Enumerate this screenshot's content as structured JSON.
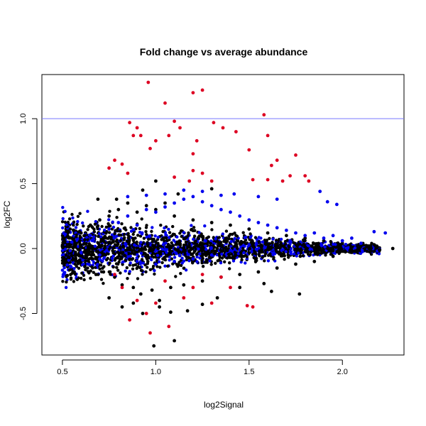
{
  "chart_data": {
    "type": "scatter",
    "title": "Fold change vs average abundance",
    "xlabel": "log2Signal",
    "ylabel": "log2FC",
    "xlim": [
      0.39,
      2.33
    ],
    "ylim": [
      -0.82,
      1.34
    ],
    "x_ticks": [
      "0.5",
      "1.0",
      "1.5",
      "2.0"
    ],
    "y_ticks": [
      "-0.5",
      "0.0",
      "0.5",
      "1.0"
    ],
    "x_tick_values": [
      0.5,
      1.0,
      1.5,
      2.0
    ],
    "y_tick_values": [
      -0.5,
      0.0,
      0.5,
      1.0
    ],
    "reference_line": {
      "y": 1.0,
      "color": "#7777ff"
    },
    "grid": false,
    "legend": "none",
    "colors": {
      "black": "#000000",
      "blue": "#0000ee",
      "red": "#dd0022"
    },
    "series": [
      {
        "color": "black",
        "points": [
          [
            0.5,
            0.02
          ],
          [
            0.52,
            -0.05
          ],
          [
            0.55,
            0.08
          ],
          [
            0.58,
            -0.1
          ],
          [
            0.6,
            0.12
          ],
          [
            0.62,
            -0.14
          ],
          [
            0.65,
            0.18
          ],
          [
            0.68,
            -0.2
          ],
          [
            0.7,
            0.22
          ],
          [
            0.72,
            -0.18
          ],
          [
            0.75,
            0.25
          ],
          [
            0.78,
            -0.22
          ],
          [
            0.8,
            0.3
          ],
          [
            0.82,
            -0.28
          ],
          [
            0.85,
            0.35
          ],
          [
            0.88,
            -0.3
          ],
          [
            0.9,
            0.28
          ],
          [
            0.92,
            -0.35
          ],
          [
            0.95,
            0.33
          ],
          [
            0.98,
            -0.32
          ],
          [
            1.0,
            0.3
          ],
          [
            1.02,
            -0.4
          ],
          [
            1.05,
            0.35
          ],
          [
            1.08,
            -0.3
          ],
          [
            1.1,
            0.25
          ],
          [
            1.15,
            -0.28
          ],
          [
            1.2,
            0.22
          ],
          [
            1.25,
            -0.25
          ],
          [
            1.3,
            0.2
          ],
          [
            1.35,
            -0.22
          ],
          [
            1.4,
            0.18
          ],
          [
            1.45,
            -0.2
          ],
          [
            1.5,
            0.15
          ],
          [
            1.55,
            -0.18
          ],
          [
            1.6,
            0.12
          ],
          [
            1.65,
            -0.15
          ],
          [
            1.7,
            0.1
          ],
          [
            1.75,
            -0.12
          ],
          [
            1.8,
            0.08
          ],
          [
            1.85,
            -0.1
          ],
          [
            1.9,
            0.06
          ],
          [
            1.95,
            -0.06
          ],
          [
            2.0,
            0.04
          ],
          [
            2.05,
            -0.03
          ],
          [
            2.1,
            0.02
          ],
          [
            2.15,
            0.01
          ],
          [
            2.2,
            -0.01
          ],
          [
            2.27,
            0.0
          ],
          [
            0.82,
            -0.45
          ],
          [
            0.88,
            -0.42
          ],
          [
            0.93,
            -0.5
          ],
          [
            1.02,
            -0.45
          ],
          [
            1.08,
            -0.49
          ],
          [
            1.17,
            -0.48
          ],
          [
            1.1,
            -0.71
          ],
          [
            0.99,
            -0.75
          ],
          [
            1.25,
            -0.43
          ],
          [
            1.33,
            -0.38
          ],
          [
            1.45,
            -0.3
          ],
          [
            1.58,
            -0.27
          ],
          [
            1.62,
            -0.33
          ],
          [
            1.77,
            -0.35
          ],
          [
            0.75,
            -0.38
          ],
          [
            0.79,
            0.38
          ],
          [
            0.93,
            0.45
          ],
          [
            1.0,
            0.52
          ],
          [
            1.12,
            0.42
          ],
          [
            1.3,
            0.46
          ],
          [
            0.69,
            0.38
          ]
        ]
      },
      {
        "color": "blue",
        "points": [
          [
            0.55,
            0.05
          ],
          [
            0.6,
            -0.03
          ],
          [
            0.65,
            0.1
          ],
          [
            0.7,
            -0.08
          ],
          [
            0.75,
            0.15
          ],
          [
            0.8,
            0.2
          ],
          [
            0.85,
            0.25
          ],
          [
            0.9,
            0.18
          ],
          [
            0.95,
            0.3
          ],
          [
            1.0,
            0.28
          ],
          [
            1.05,
            0.32
          ],
          [
            1.1,
            0.35
          ],
          [
            1.15,
            0.38
          ],
          [
            1.2,
            0.4
          ],
          [
            1.25,
            0.36
          ],
          [
            1.3,
            0.33
          ],
          [
            1.35,
            0.3
          ],
          [
            1.4,
            0.28
          ],
          [
            1.45,
            0.25
          ],
          [
            1.5,
            0.22
          ],
          [
            1.55,
            0.2
          ],
          [
            1.6,
            0.18
          ],
          [
            1.65,
            0.16
          ],
          [
            1.7,
            0.14
          ],
          [
            1.75,
            0.12
          ],
          [
            1.8,
            0.1
          ],
          [
            1.85,
            0.12
          ],
          [
            1.9,
            0.08
          ],
          [
            1.95,
            0.1
          ],
          [
            2.0,
            0.06
          ],
          [
            2.05,
            0.08
          ],
          [
            2.1,
            0.04
          ],
          [
            2.17,
            0.13
          ],
          [
            2.23,
            0.12
          ],
          [
            1.88,
            0.44
          ],
          [
            1.92,
            0.36
          ],
          [
            1.97,
            0.34
          ],
          [
            1.65,
            0.38
          ],
          [
            1.55,
            0.4
          ],
          [
            1.42,
            0.42
          ],
          [
            1.35,
            0.41
          ],
          [
            1.25,
            0.44
          ],
          [
            1.15,
            0.45
          ],
          [
            1.05,
            0.42
          ],
          [
            0.95,
            0.41
          ],
          [
            0.85,
            0.4
          ],
          [
            1.0,
            -0.12
          ],
          [
            1.1,
            -0.1
          ],
          [
            1.2,
            -0.08
          ],
          [
            0.9,
            -0.1
          ],
          [
            0.7,
            -0.05
          ],
          [
            1.3,
            -0.05
          ],
          [
            1.5,
            0.03
          ]
        ]
      },
      {
        "color": "red",
        "points": [
          [
            0.96,
            1.28
          ],
          [
            1.2,
            1.2
          ],
          [
            1.25,
            1.22
          ],
          [
            1.05,
            1.12
          ],
          [
            1.58,
            1.03
          ],
          [
            0.86,
            0.97
          ],
          [
            1.1,
            0.98
          ],
          [
            1.31,
            0.97
          ],
          [
            0.9,
            0.93
          ],
          [
            1.13,
            0.93
          ],
          [
            1.36,
            0.93
          ],
          [
            1.43,
            0.9
          ],
          [
            0.88,
            0.87
          ],
          [
            0.92,
            0.87
          ],
          [
            1.07,
            0.87
          ],
          [
            1.6,
            0.87
          ],
          [
            1.22,
            0.83
          ],
          [
            1.0,
            0.83
          ],
          [
            0.97,
            0.77
          ],
          [
            1.5,
            0.76
          ],
          [
            1.2,
            0.73
          ],
          [
            1.75,
            0.72
          ],
          [
            0.78,
            0.68
          ],
          [
            1.65,
            0.68
          ],
          [
            0.82,
            0.65
          ],
          [
            1.62,
            0.64
          ],
          [
            0.75,
            0.62
          ],
          [
            1.2,
            0.6
          ],
          [
            0.85,
            0.58
          ],
          [
            1.25,
            0.58
          ],
          [
            1.72,
            0.56
          ],
          [
            1.8,
            0.56
          ],
          [
            1.1,
            0.55
          ],
          [
            1.18,
            0.52
          ],
          [
            1.3,
            0.52
          ],
          [
            1.52,
            0.53
          ],
          [
            1.6,
            0.53
          ],
          [
            1.68,
            0.52
          ],
          [
            1.82,
            0.52
          ],
          [
            0.86,
            -0.55
          ],
          [
            0.95,
            -0.5
          ],
          [
            1.07,
            -0.6
          ],
          [
            0.9,
            -0.4
          ],
          [
            1.0,
            -0.42
          ],
          [
            1.15,
            -0.38
          ],
          [
            1.3,
            -0.42
          ],
          [
            1.52,
            -0.45
          ],
          [
            0.82,
            -0.3
          ],
          [
            1.05,
            -0.25
          ],
          [
            1.2,
            -0.3
          ],
          [
            1.4,
            -0.3
          ],
          [
            0.78,
            -0.2
          ],
          [
            1.25,
            -0.2
          ],
          [
            1.35,
            -0.22
          ],
          [
            0.97,
            -0.65
          ],
          [
            1.49,
            -0.44
          ]
        ]
      }
    ]
  }
}
